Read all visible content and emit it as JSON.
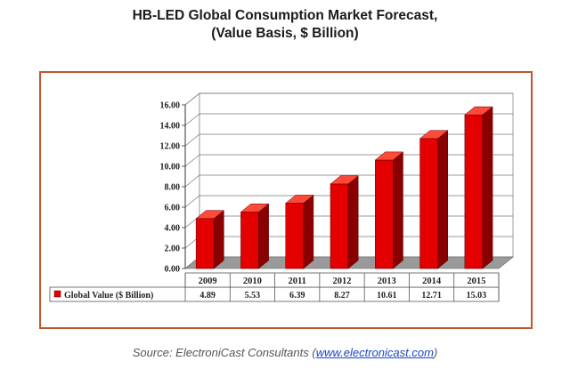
{
  "header": {
    "title_line1": "HB-LED Global Consumption Market Forecast,",
    "title_line2": "(Value Basis, $ Billion)"
  },
  "source": {
    "prefix": "Source: ElectroniCast Consultants (",
    "link": "www.electronicast.com",
    "suffix": ")"
  },
  "colors": {
    "bar_front": "#e50000",
    "bar_side": "#8a0000",
    "bar_top": "#ff4a3a",
    "frame": "#c4552b",
    "floor": "#9a9a9a"
  },
  "chart_data": {
    "type": "bar",
    "categories": [
      "2009",
      "2010",
      "2011",
      "2012",
      "2013",
      "2014",
      "2015"
    ],
    "series": [
      {
        "name": "Global Value ($ Billion)",
        "values": [
          4.89,
          5.53,
          6.39,
          8.27,
          10.61,
          12.71,
          15.03
        ]
      }
    ],
    "value_labels": [
      "4.89",
      "5.53",
      "6.39",
      "8.27",
      "10.61",
      "12.71",
      "15.03"
    ],
    "y_ticks": [
      "0.00",
      "2.00",
      "4.00",
      "6.00",
      "8.00",
      "10.00",
      "12.00",
      "14.00",
      "16.00"
    ],
    "ylim": [
      0,
      16
    ],
    "grid": true,
    "three_d": true,
    "data_table": true
  }
}
